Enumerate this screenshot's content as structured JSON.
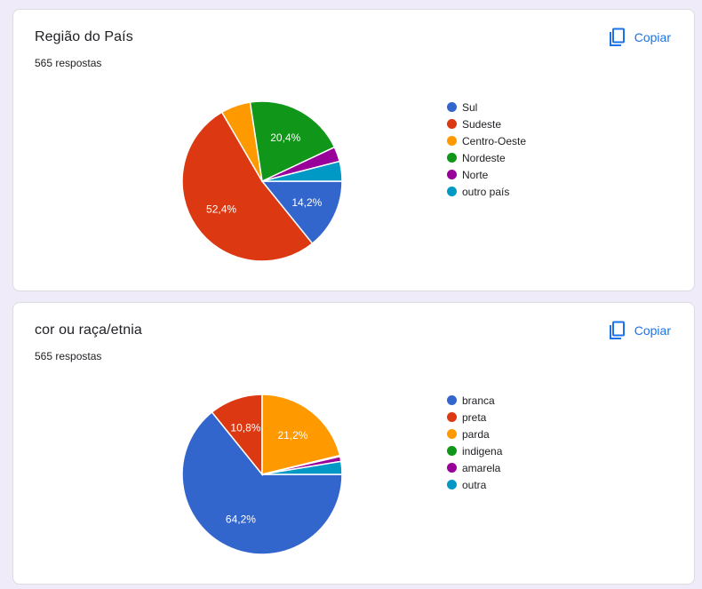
{
  "copy_label": "Copiar",
  "chart_data": [
    {
      "type": "pie",
      "title": "Região do País",
      "subtitle": "565 respostas",
      "categories": [
        "Sul",
        "Sudeste",
        "Centro-Oeste",
        "Nordeste",
        "Norte",
        "outro país"
      ],
      "values": [
        14.2,
        52.4,
        6.0,
        20.4,
        3.0,
        4.0
      ],
      "value_labels": [
        "14,2%",
        "52,4%",
        "",
        "20,4%",
        "",
        ""
      ],
      "colors": [
        "#3366cc",
        "#dc3912",
        "#ff9900",
        "#109618",
        "#990099",
        "#0099c6"
      ],
      "legend_position": "right"
    },
    {
      "type": "pie",
      "title": "cor ou raça/etnia",
      "subtitle": "565 respostas",
      "categories": [
        "branca",
        "preta",
        "parda",
        "indigena",
        "amarela",
        "outra"
      ],
      "values": [
        64.2,
        10.8,
        21.2,
        0.2,
        1.0,
        2.6
      ],
      "value_labels": [
        "64,2%",
        "10,8%",
        "21,2%",
        "",
        "",
        ""
      ],
      "colors": [
        "#3366cc",
        "#dc3912",
        "#ff9900",
        "#109618",
        "#990099",
        "#0099c6"
      ],
      "legend_position": "right"
    }
  ]
}
